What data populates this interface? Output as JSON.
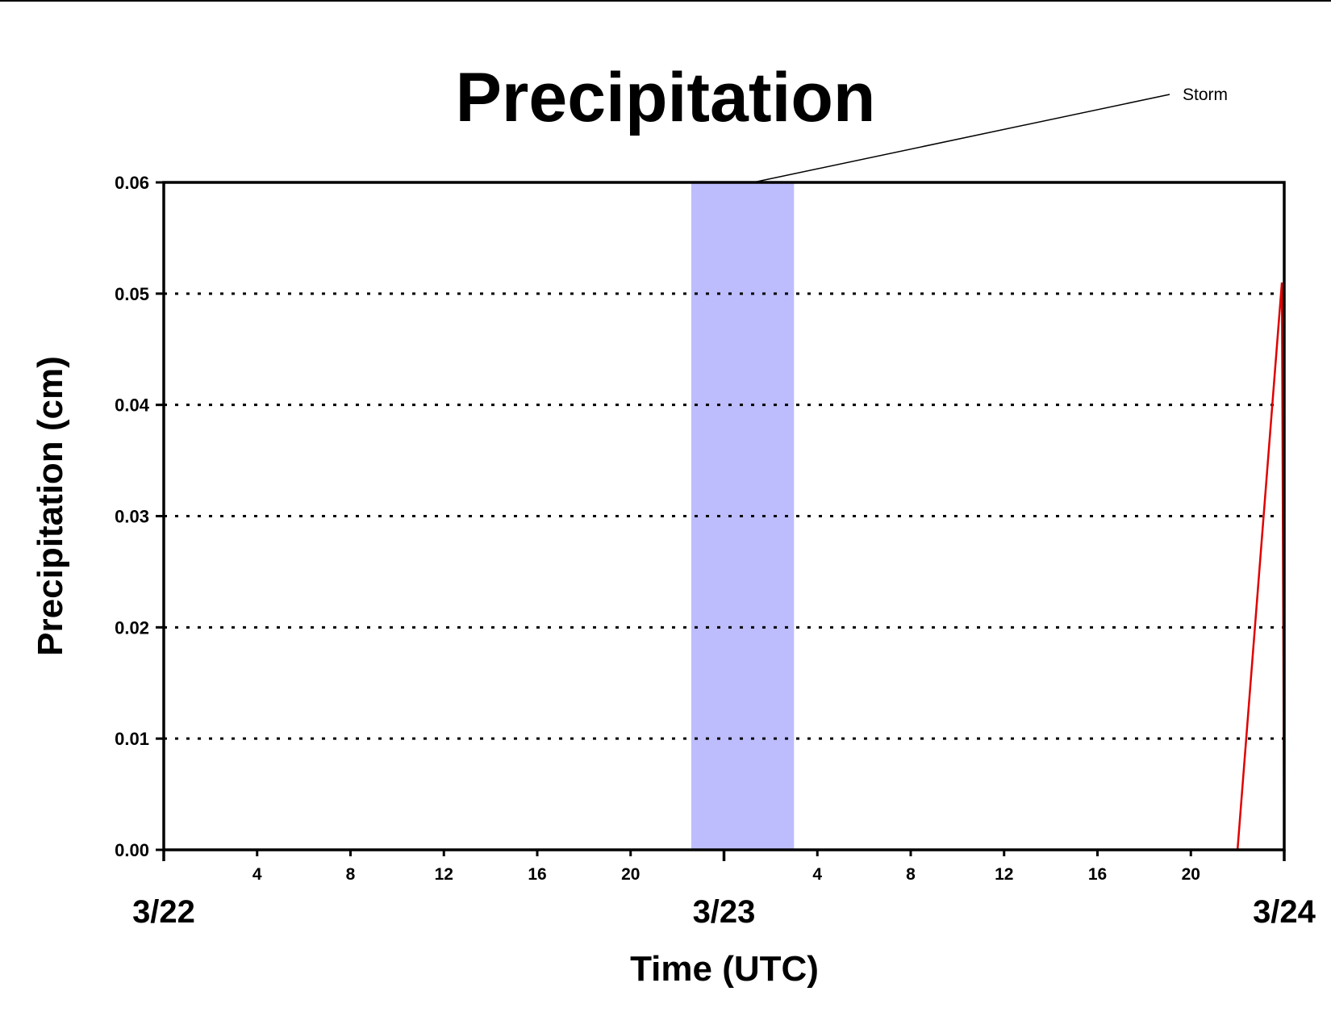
{
  "chart_data": {
    "type": "line",
    "title": "Precipitation",
    "xlabel": "Time (UTC)",
    "ylabel": "Precipitation (cm)",
    "ylim": [
      0,
      0.06
    ],
    "yticks": [
      "0.00",
      "0.01",
      "0.02",
      "0.03",
      "0.04",
      "0.05",
      "0.06"
    ],
    "xlim_hours": [
      0,
      48
    ],
    "hour_ticks": [
      {
        "hour": 4,
        "label": "4"
      },
      {
        "hour": 8,
        "label": "8"
      },
      {
        "hour": 12,
        "label": "12"
      },
      {
        "hour": 16,
        "label": "16"
      },
      {
        "hour": 20,
        "label": "20"
      },
      {
        "hour": 28,
        "label": "4"
      },
      {
        "hour": 32,
        "label": "8"
      },
      {
        "hour": 36,
        "label": "12"
      },
      {
        "hour": 40,
        "label": "16"
      },
      {
        "hour": 44,
        "label": "20"
      }
    ],
    "date_labels": [
      {
        "hour": 0,
        "label": "3/22"
      },
      {
        "hour": 24,
        "label": "3/23"
      },
      {
        "hour": 48,
        "label": "3/24"
      }
    ],
    "major_ticks_hours": [
      0,
      24,
      48
    ],
    "grid": {
      "y": true,
      "style": "dotted"
    },
    "series": [
      {
        "color": "#e00000",
        "x": [
          0,
          46,
          47.9,
          48
        ],
        "y": [
          0,
          0,
          0.051,
          0
        ]
      }
    ],
    "shaded_region": {
      "x_start": 22.6,
      "x_end": 27.0,
      "color": "#bdbdfd",
      "label": "Storm"
    }
  }
}
